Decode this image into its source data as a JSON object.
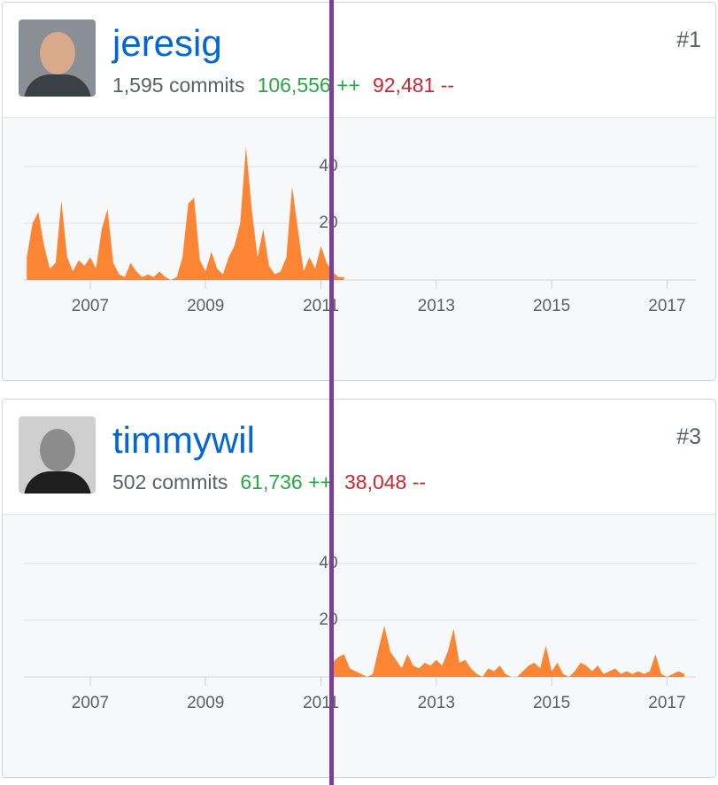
{
  "contributors": [
    {
      "username": "jeresig",
      "rank": "#1",
      "commits": "1,595 commits",
      "additions": "106,556 ++",
      "deletions": "92,481 --"
    },
    {
      "username": "timmywil",
      "rank": "#3",
      "commits": "502 commits",
      "additions": "61,736 ++",
      "deletions": "38,048 --"
    }
  ],
  "chart_data": [
    {
      "type": "area",
      "color": "#fb8532",
      "xlim": [
        2005.85,
        2017.5
      ],
      "ylim": [
        0,
        50
      ],
      "yticks": [
        20,
        40
      ],
      "xticks": [
        2007,
        2009,
        2011,
        2013,
        2015,
        2017
      ],
      "grid": true,
      "x": [
        2005.9,
        2006.0,
        2006.1,
        2006.2,
        2006.3,
        2006.4,
        2006.5,
        2006.6,
        2006.7,
        2006.8,
        2006.9,
        2007.0,
        2007.1,
        2007.2,
        2007.3,
        2007.4,
        2007.5,
        2007.6,
        2007.7,
        2007.8,
        2007.9,
        2008.0,
        2008.1,
        2008.2,
        2008.3,
        2008.4,
        2008.5,
        2008.6,
        2008.7,
        2008.8,
        2008.9,
        2009.0,
        2009.1,
        2009.2,
        2009.3,
        2009.4,
        2009.5,
        2009.6,
        2009.7,
        2009.8,
        2009.9,
        2010.0,
        2010.1,
        2010.2,
        2010.3,
        2010.4,
        2010.5,
        2010.6,
        2010.7,
        2010.8,
        2010.9,
        2011.0,
        2011.1,
        2011.2,
        2011.3,
        2011.4
      ],
      "values": [
        8,
        20,
        24,
        12,
        4,
        6,
        28,
        8,
        3,
        7,
        5,
        8,
        4,
        18,
        25,
        6,
        2,
        1,
        6,
        3,
        1,
        2,
        1,
        3,
        1,
        0,
        1,
        8,
        27,
        29,
        7,
        3,
        10,
        4,
        2,
        8,
        12,
        20,
        47,
        25,
        8,
        18,
        5,
        2,
        3,
        8,
        33,
        18,
        3,
        8,
        4,
        12,
        6,
        3,
        1,
        1
      ]
    },
    {
      "type": "area",
      "color": "#fb8532",
      "xlim": [
        2005.85,
        2017.5
      ],
      "ylim": [
        0,
        50
      ],
      "yticks": [
        20,
        40
      ],
      "xticks": [
        2007,
        2009,
        2011,
        2013,
        2015,
        2017
      ],
      "grid": true,
      "x": [
        2011.2,
        2011.3,
        2011.4,
        2011.5,
        2011.6,
        2011.7,
        2011.8,
        2011.9,
        2012.0,
        2012.1,
        2012.2,
        2012.3,
        2012.4,
        2012.5,
        2012.6,
        2012.7,
        2012.8,
        2012.9,
        2013.0,
        2013.1,
        2013.2,
        2013.3,
        2013.4,
        2013.5,
        2013.6,
        2013.7,
        2013.8,
        2013.9,
        2014.0,
        2014.1,
        2014.2,
        2014.3,
        2014.4,
        2014.5,
        2014.6,
        2014.7,
        2014.8,
        2014.9,
        2015.0,
        2015.1,
        2015.2,
        2015.3,
        2015.4,
        2015.5,
        2015.6,
        2015.7,
        2015.8,
        2015.9,
        2016.0,
        2016.1,
        2016.2,
        2016.3,
        2016.4,
        2016.5,
        2016.6,
        2016.7,
        2016.8,
        2016.9,
        2017.0,
        2017.1,
        2017.2,
        2017.3
      ],
      "values": [
        5,
        7,
        8,
        3,
        2,
        1,
        0,
        1,
        10,
        18,
        9,
        6,
        3,
        8,
        4,
        3,
        5,
        4,
        6,
        4,
        9,
        17,
        5,
        6,
        3,
        1,
        0,
        3,
        2,
        4,
        1,
        0,
        0,
        2,
        4,
        5,
        3,
        11,
        2,
        5,
        1,
        0,
        2,
        5,
        4,
        2,
        4,
        1,
        2,
        3,
        1,
        2,
        1,
        2,
        1,
        2,
        8,
        1,
        0,
        1,
        2,
        1
      ]
    }
  ]
}
